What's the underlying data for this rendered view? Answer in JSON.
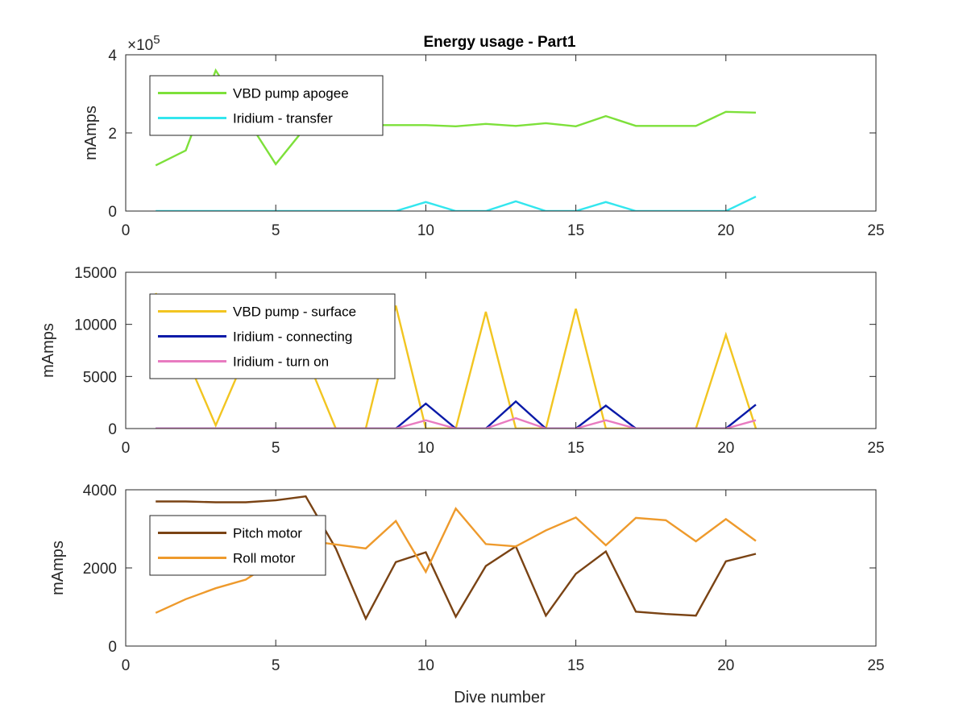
{
  "figure": {
    "title": "Energy usage - Part1",
    "xlabel": "Dive number"
  },
  "chart_data": [
    {
      "type": "line",
      "title": "Energy usage - Part1",
      "xlabel": "",
      "ylabel": "mAmps",
      "xlim": [
        0,
        25
      ],
      "ylim": [
        0,
        400000
      ],
      "xticks": [
        0,
        5,
        10,
        15,
        20,
        25
      ],
      "yticks": [
        0,
        200000,
        400000
      ],
      "ytick_labels": [
        "0",
        "2",
        "4"
      ],
      "exponent_label": "×10",
      "exponent_power": "5",
      "grid": false,
      "legend_position": "top-left",
      "series": [
        {
          "name": "VBD pump apogee",
          "color": "#7de03a",
          "x": [
            1,
            2,
            3,
            4,
            5,
            6,
            7,
            8,
            9,
            10,
            11,
            12,
            13,
            14,
            15,
            16,
            17,
            18,
            19,
            20,
            21
          ],
          "y": [
            117000,
            155000,
            360000,
            240000,
            120000,
            215000,
            220000,
            220000,
            220000,
            220000,
            217000,
            223000,
            218000,
            225000,
            217000,
            243000,
            218000,
            218000,
            218000,
            254000,
            252000
          ]
        },
        {
          "name": "Iridium - transfer",
          "color": "#33e6ee",
          "x": [
            1,
            2,
            3,
            4,
            5,
            6,
            7,
            8,
            9,
            10,
            11,
            12,
            13,
            14,
            15,
            16,
            17,
            18,
            19,
            20,
            21
          ],
          "y": [
            0,
            0,
            0,
            0,
            0,
            0,
            0,
            0,
            0,
            23000,
            0,
            0,
            25000,
            0,
            0,
            23000,
            0,
            0,
            0,
            0,
            37000
          ]
        }
      ]
    },
    {
      "type": "line",
      "title": "",
      "xlabel": "",
      "ylabel": "mAmps",
      "xlim": [
        0,
        25
      ],
      "ylim": [
        0,
        15000
      ],
      "xticks": [
        0,
        5,
        10,
        15,
        20,
        25
      ],
      "yticks": [
        0,
        5000,
        10000,
        15000
      ],
      "ytick_labels": [
        "0",
        "5000",
        "10000",
        "15000"
      ],
      "grid": false,
      "legend_position": "top-left",
      "series": [
        {
          "name": "VBD pump - surface",
          "color": "#f2c521",
          "x": [
            1,
            2,
            3,
            4,
            5,
            6,
            7,
            8,
            9,
            10,
            11,
            12,
            13,
            14,
            15,
            16,
            17,
            18,
            19,
            20,
            21
          ],
          "y": [
            13000,
            7000,
            300,
            7000,
            7000,
            7000,
            0,
            0,
            11800,
            0,
            0,
            11200,
            0,
            0,
            11500,
            0,
            0,
            0,
            0,
            9000,
            0
          ]
        },
        {
          "name": "Iridium - connecting",
          "color": "#0a1aa8",
          "x": [
            1,
            2,
            3,
            4,
            5,
            6,
            7,
            8,
            9,
            10,
            11,
            12,
            13,
            14,
            15,
            16,
            17,
            18,
            19,
            20,
            21
          ],
          "y": [
            0,
            0,
            0,
            0,
            0,
            0,
            0,
            0,
            0,
            2400,
            0,
            0,
            2600,
            0,
            0,
            2200,
            0,
            0,
            0,
            0,
            2300
          ]
        },
        {
          "name": "Iridium - turn on",
          "color": "#e87bc0",
          "x": [
            1,
            2,
            3,
            4,
            5,
            6,
            7,
            8,
            9,
            10,
            11,
            12,
            13,
            14,
            15,
            16,
            17,
            18,
            19,
            20,
            21
          ],
          "y": [
            0,
            0,
            0,
            0,
            0,
            0,
            0,
            0,
            0,
            800,
            0,
            0,
            1000,
            0,
            0,
            800,
            0,
            0,
            0,
            0,
            800
          ]
        }
      ]
    },
    {
      "type": "line",
      "title": "",
      "xlabel": "Dive number",
      "ylabel": "mAmps",
      "xlim": [
        0,
        25
      ],
      "ylim": [
        0,
        4000
      ],
      "xticks": [
        0,
        5,
        10,
        15,
        20,
        25
      ],
      "yticks": [
        0,
        2000,
        4000
      ],
      "ytick_labels": [
        "0",
        "2000",
        "4000"
      ],
      "grid": false,
      "legend_position": "top-left",
      "series": [
        {
          "name": "Pitch motor",
          "color": "#7a4314",
          "x": [
            1,
            2,
            3,
            4,
            5,
            6,
            7,
            8,
            9,
            10,
            11,
            12,
            13,
            14,
            15,
            16,
            17,
            18,
            19,
            20,
            21
          ],
          "y": [
            3700,
            3700,
            3680,
            3680,
            3730,
            3830,
            2500,
            700,
            2150,
            2400,
            750,
            2050,
            2550,
            780,
            1850,
            2420,
            880,
            820,
            780,
            2170,
            2360
          ]
        },
        {
          "name": "Roll motor",
          "color": "#ee9a2c",
          "x": [
            1,
            2,
            3,
            4,
            5,
            6,
            7,
            8,
            9,
            10,
            11,
            12,
            13,
            14,
            15,
            16,
            17,
            18,
            19,
            20,
            21
          ],
          "y": [
            850,
            1200,
            1480,
            1700,
            2200,
            2700,
            2600,
            2500,
            3200,
            1900,
            3520,
            2610,
            2550,
            2960,
            3290,
            2580,
            3280,
            3220,
            2680,
            3250,
            2690
          ]
        }
      ]
    }
  ]
}
